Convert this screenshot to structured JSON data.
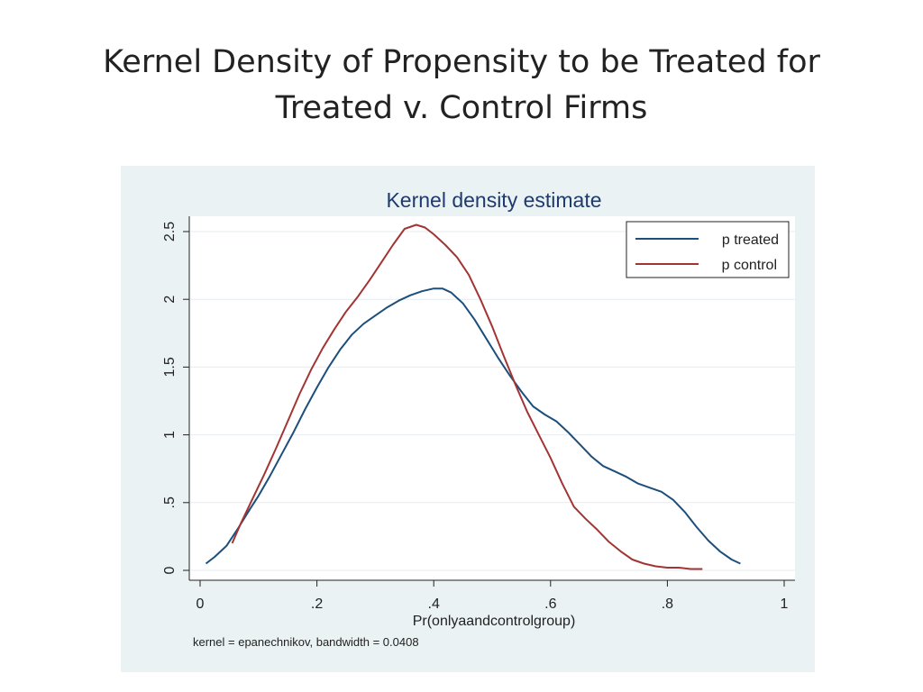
{
  "slide": {
    "title_line1": "Kernel Density of Propensity to be Treated for",
    "title_line2": "Treated v. Control Firms"
  },
  "chart_data": {
    "type": "line",
    "title": "Kernel density estimate",
    "xlabel": "Pr(onlyaandcontrolgroup)",
    "ylabel": "",
    "note": "kernel = epanechnikov, bandwidth = 0.0408",
    "xlim": [
      0,
      1
    ],
    "ylim": [
      0,
      2.5
    ],
    "xticks": [
      {
        "value": 0,
        "label": "0"
      },
      {
        "value": 0.2,
        "label": ".2"
      },
      {
        "value": 0.4,
        "label": ".4"
      },
      {
        "value": 0.6,
        "label": ".6"
      },
      {
        "value": 0.8,
        "label": ".8"
      },
      {
        "value": 1,
        "label": "1"
      }
    ],
    "yticks": [
      {
        "value": 0,
        "label": "0"
      },
      {
        "value": 0.5,
        "label": ".5"
      },
      {
        "value": 1,
        "label": "1"
      },
      {
        "value": 1.5,
        "label": "1.5"
      },
      {
        "value": 2,
        "label": "2"
      },
      {
        "value": 2.5,
        "label": "2.5"
      }
    ],
    "grid": true,
    "legend_position": "top-right",
    "colors": {
      "title": "#1f3a6e",
      "plot_background": "#ffffff",
      "grid": "#e4ecef",
      "axis": "#222222"
    },
    "series": [
      {
        "name": "p treated",
        "color": "#1c4f7c",
        "x": [
          0.01,
          0.025,
          0.045,
          0.065,
          0.085,
          0.1,
          0.12,
          0.14,
          0.16,
          0.18,
          0.2,
          0.22,
          0.24,
          0.26,
          0.28,
          0.3,
          0.32,
          0.34,
          0.36,
          0.38,
          0.4,
          0.415,
          0.43,
          0.45,
          0.47,
          0.49,
          0.51,
          0.53,
          0.55,
          0.57,
          0.59,
          0.61,
          0.63,
          0.65,
          0.67,
          0.69,
          0.71,
          0.73,
          0.75,
          0.77,
          0.79,
          0.81,
          0.83,
          0.85,
          0.87,
          0.89,
          0.91,
          0.925
        ],
        "y": [
          0.05,
          0.1,
          0.18,
          0.31,
          0.45,
          0.55,
          0.7,
          0.86,
          1.02,
          1.19,
          1.35,
          1.5,
          1.63,
          1.74,
          1.82,
          1.88,
          1.94,
          1.99,
          2.03,
          2.06,
          2.08,
          2.08,
          2.05,
          1.97,
          1.85,
          1.71,
          1.57,
          1.44,
          1.32,
          1.21,
          1.15,
          1.1,
          1.02,
          0.93,
          0.84,
          0.77,
          0.73,
          0.69,
          0.64,
          0.61,
          0.58,
          0.52,
          0.43,
          0.32,
          0.22,
          0.14,
          0.08,
          0.05
        ]
      },
      {
        "name": "p control",
        "color": "#a33434",
        "x": [
          0.055,
          0.07,
          0.09,
          0.11,
          0.13,
          0.15,
          0.17,
          0.19,
          0.21,
          0.23,
          0.25,
          0.27,
          0.29,
          0.31,
          0.33,
          0.35,
          0.37,
          0.385,
          0.4,
          0.42,
          0.44,
          0.46,
          0.48,
          0.5,
          0.52,
          0.54,
          0.56,
          0.58,
          0.6,
          0.62,
          0.64,
          0.66,
          0.68,
          0.7,
          0.72,
          0.74,
          0.76,
          0.78,
          0.8,
          0.82,
          0.84,
          0.86
        ],
        "y": [
          0.2,
          0.35,
          0.53,
          0.71,
          0.9,
          1.1,
          1.3,
          1.48,
          1.64,
          1.78,
          1.91,
          2.02,
          2.14,
          2.27,
          2.4,
          2.52,
          2.55,
          2.53,
          2.48,
          2.4,
          2.31,
          2.18,
          2.0,
          1.8,
          1.58,
          1.37,
          1.17,
          1.0,
          0.83,
          0.64,
          0.47,
          0.38,
          0.3,
          0.21,
          0.14,
          0.08,
          0.05,
          0.03,
          0.02,
          0.02,
          0.01,
          0.01
        ]
      }
    ]
  }
}
